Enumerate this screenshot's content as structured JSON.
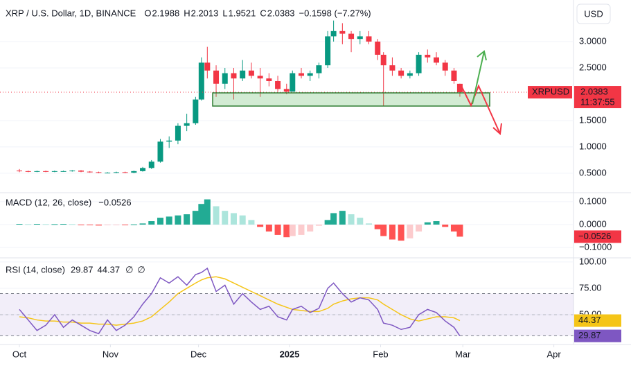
{
  "chart_data": [
    {
      "type": "candlestick",
      "title": "XRP / U.S. Dollar, 1D, BINANCE",
      "symbol": "XRPUSD",
      "currency": "USD",
      "countdown": "11:37:55",
      "ohlc_letters": [
        "O",
        "H",
        "L",
        "C"
      ],
      "change": {
        "value": -0.1598,
        "label": "−0.1598 (−7.27%)"
      },
      "up_color": "#089981",
      "down_color": "#f23645",
      "x": [
        0,
        3,
        6,
        9,
        12,
        15,
        18,
        21,
        24,
        27,
        30,
        33,
        36,
        39,
        42,
        45,
        48,
        51,
        54,
        57,
        60,
        62,
        64,
        67,
        70,
        73,
        76,
        79,
        82,
        85,
        88,
        91,
        93,
        96,
        99,
        102,
        105,
        107,
        110,
        113,
        116,
        119,
        122,
        124,
        127,
        130,
        133,
        136,
        139,
        142,
        145,
        148,
        150
      ],
      "open": [
        0.55,
        0.54,
        0.53,
        0.54,
        0.53,
        0.54,
        0.54,
        0.55,
        0.53,
        0.52,
        0.51,
        0.51,
        0.52,
        0.51,
        0.54,
        0.6,
        0.72,
        1.1,
        1.12,
        1.4,
        1.45,
        1.9,
        2.6,
        2.45,
        2.2,
        2.4,
        2.3,
        2.45,
        2.35,
        2.3,
        2.25,
        2.1,
        2.05,
        2.4,
        2.35,
        2.4,
        2.55,
        3.1,
        3.2,
        3.15,
        3.05,
        3.1,
        3.0,
        2.75,
        2.55,
        2.45,
        2.35,
        2.4,
        2.75,
        2.7,
        2.6,
        2.45,
        2.1988
      ],
      "high": [
        0.58,
        0.55,
        0.55,
        0.55,
        0.55,
        0.55,
        0.56,
        0.56,
        0.54,
        0.53,
        0.52,
        0.53,
        0.53,
        0.55,
        0.62,
        0.75,
        1.15,
        1.2,
        1.45,
        1.63,
        1.95,
        2.7,
        2.9,
        2.55,
        2.5,
        2.5,
        2.65,
        2.6,
        2.5,
        2.4,
        2.35,
        2.2,
        2.45,
        2.5,
        2.45,
        2.6,
        3.2,
        3.4,
        3.35,
        3.2,
        3.2,
        3.2,
        3.05,
        2.8,
        2.7,
        2.5,
        2.45,
        2.8,
        2.85,
        2.8,
        2.65,
        2.5,
        2.2013
      ],
      "low": [
        0.52,
        0.52,
        0.52,
        0.52,
        0.52,
        0.53,
        0.53,
        0.52,
        0.51,
        0.5,
        0.5,
        0.5,
        0.5,
        0.5,
        0.53,
        0.58,
        0.7,
        0.98,
        1.05,
        1.3,
        1.42,
        1.88,
        2.3,
        1.95,
        2.1,
        1.9,
        2.25,
        2.3,
        1.95,
        2.15,
        2.05,
        2.0,
        2.05,
        2.3,
        2.25,
        2.3,
        2.5,
        3.0,
        2.95,
        2.8,
        2.95,
        2.95,
        2.65,
        1.77,
        2.35,
        2.3,
        2.3,
        2.35,
        2.6,
        2.55,
        2.35,
        2.2,
        1.9521
      ],
      "close": [
        0.54,
        0.53,
        0.54,
        0.53,
        0.54,
        0.54,
        0.55,
        0.53,
        0.52,
        0.51,
        0.51,
        0.52,
        0.51,
        0.54,
        0.6,
        0.72,
        1.1,
        1.12,
        1.4,
        1.45,
        1.9,
        2.6,
        2.45,
        2.2,
        2.4,
        2.3,
        2.45,
        2.35,
        2.3,
        2.25,
        2.1,
        2.05,
        2.4,
        2.35,
        2.4,
        2.55,
        3.1,
        3.2,
        3.15,
        3.05,
        3.1,
        3.0,
        2.75,
        2.55,
        2.45,
        2.35,
        2.4,
        2.75,
        2.7,
        2.6,
        2.45,
        2.25,
        2.0383
      ],
      "xlim": [
        -6.6,
        188.7
      ],
      "ylim": [
        0.13,
        3.79
      ],
      "yticks": [
        {
          "value": 0.5,
          "label": "0.5000"
        },
        {
          "value": 1,
          "label": "1.0000"
        },
        {
          "value": 1.5,
          "label": "1.5000"
        },
        {
          "value": 2.5,
          "label": "2.5000"
        },
        {
          "value": 3,
          "label": "3.0000"
        }
      ]
    },
    {
      "type": "bar",
      "title": "MACD (12, 26, close)",
      "current": {
        "value": -0.0526,
        "label": "−0.0526"
      },
      "colors": [
        "#22ab94",
        "#ace5dc",
        "#ff5252",
        "#fccbcd"
      ],
      "x": [
        0,
        3,
        6,
        9,
        12,
        15,
        18,
        21,
        24,
        27,
        30,
        33,
        36,
        39,
        42,
        45,
        48,
        51,
        54,
        57,
        60,
        62,
        64,
        67,
        70,
        73,
        76,
        79,
        82,
        85,
        88,
        91,
        93,
        96,
        99,
        102,
        105,
        107,
        110,
        113,
        116,
        119,
        122,
        124,
        127,
        130,
        133,
        136,
        139,
        142,
        145,
        148,
        150
      ],
      "values": [
        0.003,
        0.002,
        0.003,
        0.002,
        0.002,
        0.003,
        0.002,
        -0.002,
        -0.003,
        -0.004,
        -0.003,
        -0.002,
        -0.002,
        0.001,
        0.005,
        0.015,
        0.03,
        0.035,
        0.04,
        0.045,
        0.06,
        0.09,
        0.11,
        0.08,
        0.06,
        0.05,
        0.04,
        0.02,
        -0.01,
        -0.03,
        -0.045,
        -0.055,
        -0.05,
        -0.045,
        -0.03,
        -0.005,
        0.02,
        0.05,
        0.06,
        0.045,
        0.03,
        0.005,
        -0.02,
        -0.05,
        -0.065,
        -0.07,
        -0.06,
        -0.03,
        0.01,
        0.015,
        -0.01,
        -0.03,
        -0.0526
      ],
      "xlim": [
        -6.6,
        188.7
      ],
      "ylim": [
        -0.145,
        0.139
      ],
      "yticks": [
        {
          "value": 0.1,
          "label": "0.1000"
        },
        {
          "value": 0,
          "label": "0.0000"
        },
        {
          "value": -0.1,
          "label": "−0.1000"
        }
      ]
    },
    {
      "type": "line",
      "title": "RSI (14, close)",
      "extra_labels": [
        "∅",
        "∅"
      ],
      "bands": [
        30,
        70
      ],
      "midline": 50,
      "x": [
        0,
        3,
        6,
        9,
        12,
        15,
        18,
        21,
        24,
        27,
        30,
        33,
        36,
        39,
        42,
        45,
        48,
        51,
        54,
        57,
        60,
        62,
        64,
        67,
        70,
        73,
        76,
        79,
        82,
        85,
        88,
        91,
        93,
        96,
        99,
        102,
        105,
        107,
        110,
        113,
        116,
        119,
        122,
        124,
        127,
        130,
        133,
        136,
        139,
        142,
        145,
        148,
        150
      ],
      "series": [
        {
          "color": "#7e57c2",
          "values": [
            55,
            45,
            35,
            40,
            50,
            38,
            45,
            40,
            35,
            32,
            45,
            35,
            40,
            48,
            60,
            70,
            85,
            80,
            86,
            78,
            88,
            90,
            94,
            72,
            78,
            60,
            70,
            62,
            55,
            58,
            48,
            45,
            55,
            58,
            52,
            56,
            75,
            80,
            70,
            62,
            66,
            64,
            55,
            42,
            40,
            36,
            38,
            50,
            55,
            52,
            44,
            38,
            29.87
          ]
        },
        {
          "color": "#f5c518",
          "values": [
            48,
            47,
            45,
            44,
            44,
            43,
            43,
            42,
            42,
            41,
            41,
            40,
            41,
            42,
            44,
            48,
            55,
            62,
            70,
            75,
            80,
            83,
            85,
            86,
            84,
            80,
            76,
            72,
            68,
            64,
            60,
            57,
            55,
            54,
            53,
            53,
            56,
            60,
            63,
            65,
            66,
            66,
            64,
            60,
            55,
            50,
            46,
            44,
            46,
            48,
            48,
            47,
            44.37
          ]
        }
      ],
      "xlim": [
        -6.6,
        188.7
      ],
      "ylim": [
        21.7,
        103.9
      ],
      "yticks": [
        {
          "value": 100,
          "label": "100.00"
        },
        {
          "value": 75,
          "label": "75.00"
        },
        {
          "value": 50,
          "label": "50.00"
        }
      ],
      "xticks": [
        {
          "value": 0,
          "label": "Oct"
        },
        {
          "value": 31,
          "label": "Nov"
        },
        {
          "value": 61,
          "label": "Dec"
        },
        {
          "value": 92,
          "label": "2025"
        },
        {
          "value": 123,
          "label": "Feb"
        },
        {
          "value": 151,
          "label": "Mar"
        },
        {
          "value": 182,
          "label": "Apr"
        }
      ]
    }
  ]
}
